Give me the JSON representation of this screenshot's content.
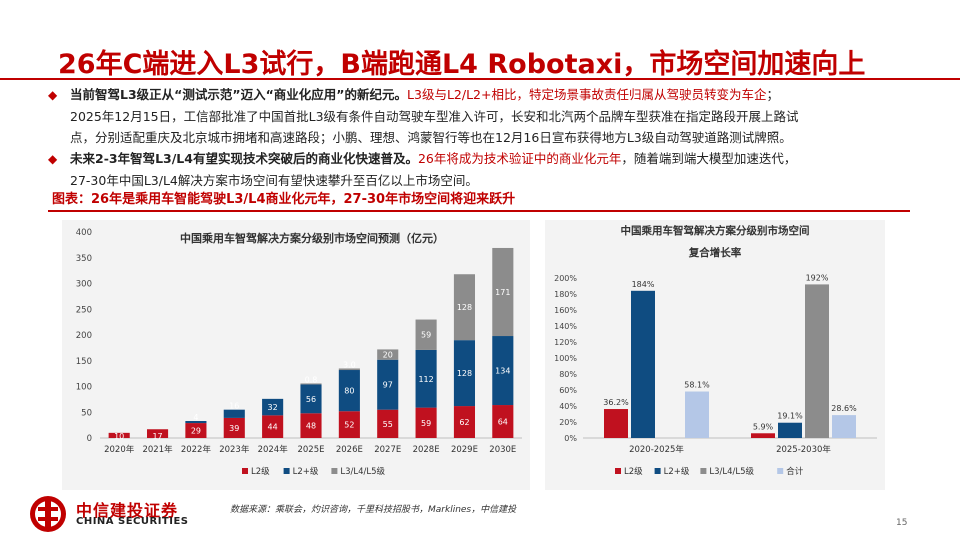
{
  "title": "26年C端进入L3试行，B端跑通L4 Robotaxi，市场空间加速向上",
  "bullets": [
    {
      "line1_bold": "当前智驾L3级正从“测试示范”迈入“商业化应用”的新纪元。",
      "line1_red": "L3级与L2/L2+相比，特定场景事故责任归属从驾驶员转变为车企",
      "line1_tail": "；",
      "line2": "2025年12月15日，工信部批准了中国首批L3级有条件自动驾驶车型准入许可，长安和北汽两个品牌车型获准在指定路段开展上路试",
      "line3": "点，分别适配重庆及北京城市拥堵和高速路段；小鹏、理想、鸿蒙智行等也在12月16日宣布获得地方L3级自动驾驶道路测试牌照。"
    },
    {
      "line1_bold": "未来2-3年智驾L3/L4有望实现技术突破后的商业化快速普及。",
      "line1_red": "26年将成为技术验证中的商业化元年",
      "line1_tail": "，随着端到端大模型加速迭代，",
      "line2": "27-30年中国L3/L4解决方案市场空间有望快速攀升至百亿以上市场空间。"
    }
  ],
  "caption": "图表：26年是乘用车智能驾驶L3/L4商业化元年，27-30年市场空间将迎来跃升",
  "chart_data": [
    {
      "type": "bar",
      "stacked": true,
      "title": "中国乘用车智驾解决方案分级别市场空间预测（亿元）",
      "categories": [
        "2020年",
        "2021年",
        "2022年",
        "2023年",
        "2024年",
        "2025E",
        "2026E",
        "2027E",
        "2028E",
        "2029E",
        "2030E"
      ],
      "series": [
        {
          "name": "L2级",
          "color": "#c0111f",
          "values": [
            10,
            17,
            29,
            39,
            44,
            48,
            52,
            55,
            59,
            62,
            64
          ]
        },
        {
          "name": "L2+级",
          "color": "#0f4c81",
          "values": [
            0,
            0,
            4,
            16,
            32,
            56,
            80,
            97,
            112,
            128,
            134
          ]
        },
        {
          "name": "L3/L4/L5级",
          "color": "#8c8c8c",
          "values": [
            0,
            0,
            0,
            0,
            0,
            0.8,
            3.0,
            20,
            59,
            128,
            171
          ]
        }
      ],
      "data_labels": [
        [
          "10",
          "17",
          "29",
          "39",
          "44",
          "48",
          "52",
          "55",
          "59",
          "62",
          "64"
        ],
        [
          "",
          "",
          "4",
          "16",
          "32",
          "56",
          "80",
          "97",
          "112",
          "128",
          "134"
        ],
        [
          "",
          "",
          "",
          "",
          "",
          "0.8",
          "3.0",
          "20",
          "59",
          "128",
          "171"
        ]
      ],
      "ylim": [
        0,
        400
      ],
      "yticks": [
        "0",
        "50",
        "100",
        "150",
        "200",
        "250",
        "300",
        "350",
        "400"
      ],
      "grid": false,
      "legend": "bottom"
    },
    {
      "type": "bar",
      "title_line1": "中国乘用车智驾解决方案分级别市场空间",
      "title_line2": "复合增长率",
      "categories": [
        "2020-2025年",
        "2025-2030年"
      ],
      "series": [
        {
          "name": "L2级",
          "color": "#c0111f",
          "values": [
            36.2,
            5.9
          ]
        },
        {
          "name": "L2+级",
          "color": "#0f4c81",
          "values": [
            184,
            19.1
          ]
        },
        {
          "name": "L3/L4/L5级",
          "color": "#8c8c8c",
          "values": [
            null,
            192
          ]
        },
        {
          "name": "合计",
          "color": "#b4c7e7",
          "values": [
            58.1,
            28.6
          ]
        }
      ],
      "data_labels": [
        [
          "36.2%",
          "5.9%"
        ],
        [
          "184%",
          "19.1%"
        ],
        [
          "",
          "192%"
        ],
        [
          "58.1%",
          "28.6%"
        ]
      ],
      "ylim": [
        0,
        200
      ],
      "yticks": [
        "0%",
        "20%",
        "40%",
        "60%",
        "80%",
        "100%",
        "120%",
        "140%",
        "160%",
        "180%",
        "200%"
      ],
      "grid": false,
      "legend": "bottom"
    }
  ],
  "footer": {
    "logo_cn": "中信建投证券",
    "logo_en": "CHINA SECURITIES",
    "source": "数据来源：乘联会，灼识咨询，千里科技招股书，Marklines，中信建投",
    "page": "15"
  },
  "colors": {
    "brand_red": "#c00000",
    "text": "#222222"
  }
}
